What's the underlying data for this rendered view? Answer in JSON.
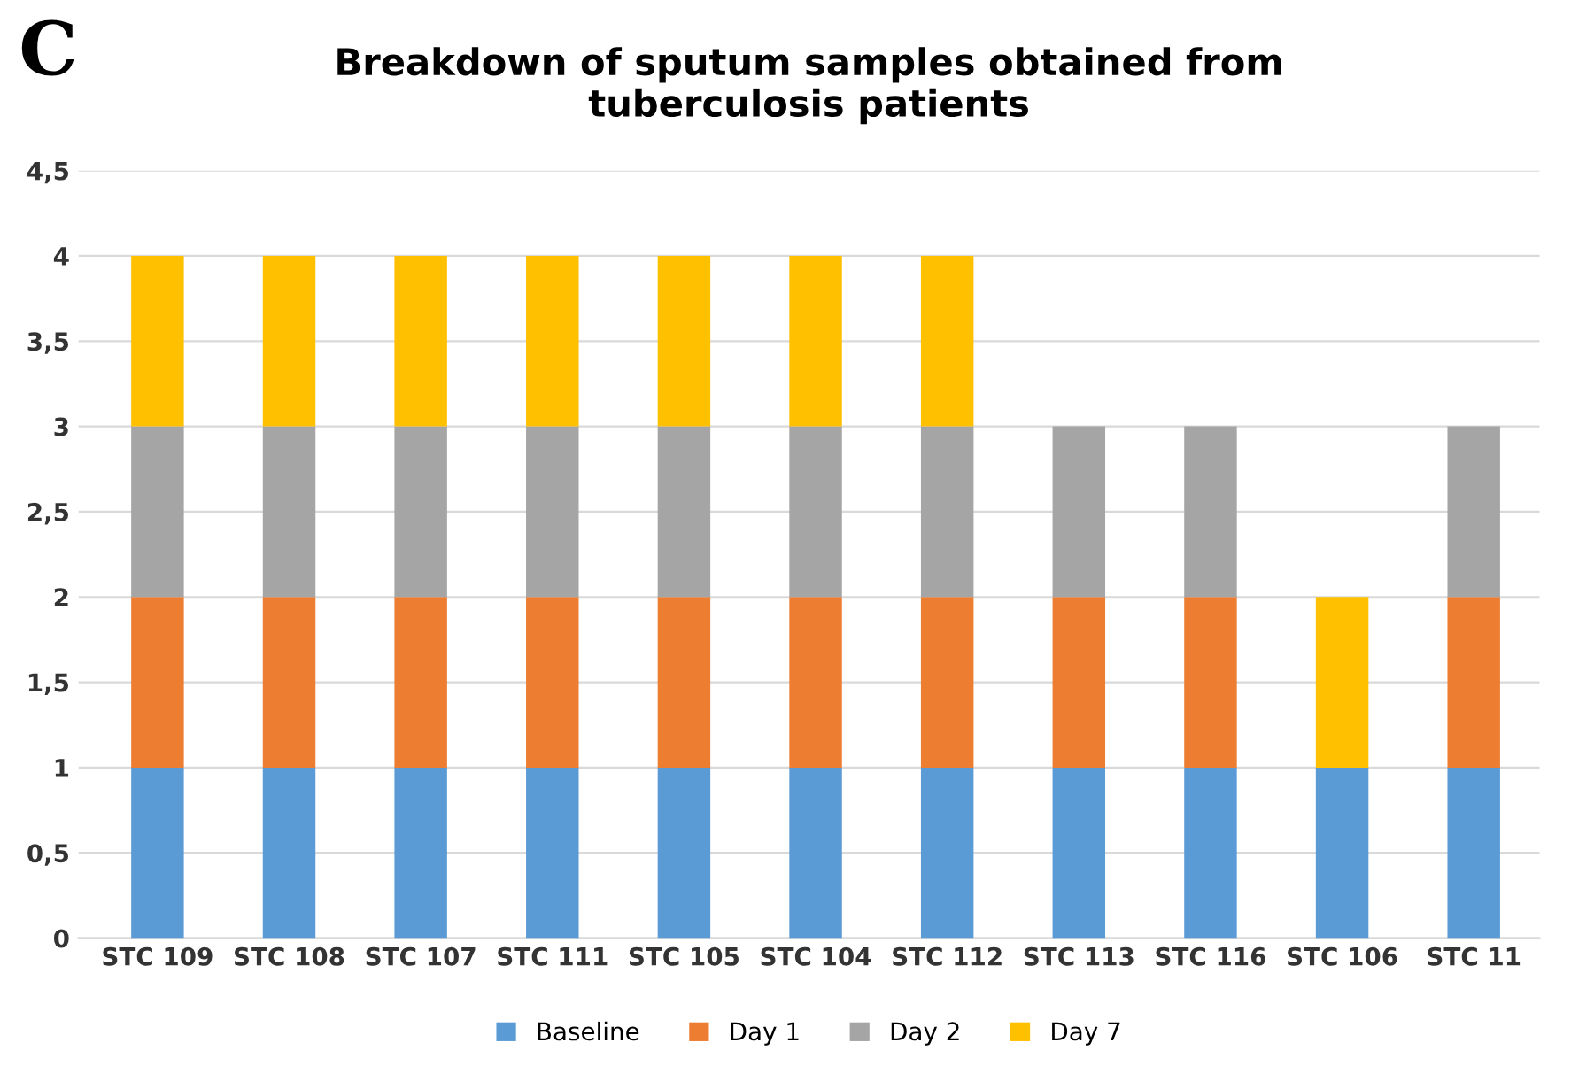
{
  "chart_data": {
    "type": "bar",
    "stacked": true,
    "title": "Breakdown of sputum samples obtained from\ntuberculosis patients",
    "annotations": [
      "C"
    ],
    "categories": [
      "STC 109",
      "STC 108",
      "STC 107",
      "STC 111",
      "STC 105",
      "STC 104",
      "STC 112",
      "STC 113",
      "STC 116",
      "STC 106",
      "STC 11"
    ],
    "series": [
      {
        "name": "Baseline",
        "color": "#5b9bd5",
        "values": [
          1,
          1,
          1,
          1,
          1,
          1,
          1,
          1,
          1,
          1,
          1
        ]
      },
      {
        "name": "Day 1",
        "color": "#ed7d31",
        "values": [
          1,
          1,
          1,
          1,
          1,
          1,
          1,
          1,
          1,
          0,
          1
        ]
      },
      {
        "name": "Day 2",
        "color": "#a5a5a5",
        "values": [
          1,
          1,
          1,
          1,
          1,
          1,
          1,
          1,
          1,
          0,
          1
        ]
      },
      {
        "name": "Day 7",
        "color": "#ffc000",
        "values": [
          1,
          1,
          1,
          1,
          1,
          1,
          1,
          0,
          0,
          1,
          0
        ]
      }
    ],
    "ylim": [
      0,
      4.5
    ],
    "yticks": [
      0,
      {
        "value": 0.5,
        "label": "0,5"
      },
      1,
      {
        "value": 1.5,
        "label": "1,5"
      },
      2,
      {
        "value": 2.5,
        "label": "2,5"
      },
      3,
      {
        "value": 3.5,
        "label": "3,5"
      },
      4,
      {
        "value": 4.5,
        "label": "4,5"
      }
    ],
    "grid": "y",
    "legend": "bottom"
  }
}
